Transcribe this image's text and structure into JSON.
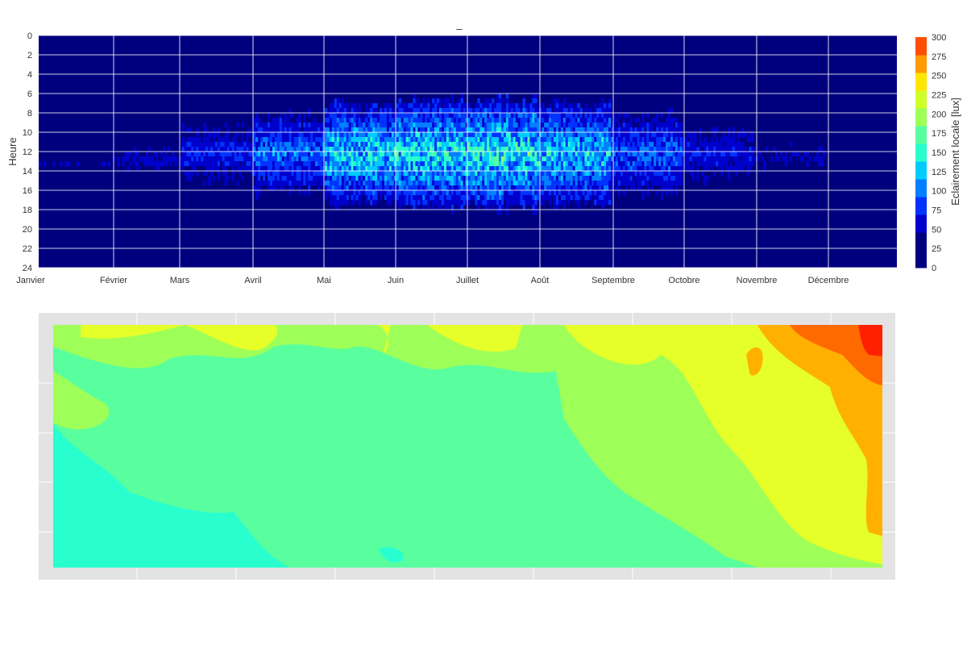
{
  "chart_data": [
    {
      "type": "heatmap",
      "title": "–",
      "xlabel": "",
      "ylabel": "Heure",
      "x_tick_labels": [
        "Janvier",
        "Février",
        "Mars",
        "Avril",
        "Mai",
        "Juin",
        "Juillet",
        "Août",
        "Septembre",
        "Octobre",
        "Novembre",
        "Décembre"
      ],
      "y_ticks": [
        0,
        2,
        4,
        6,
        8,
        10,
        12,
        14,
        16,
        18,
        20,
        22,
        24
      ],
      "ylim": [
        24,
        0
      ],
      "grid": true,
      "colorbar": {
        "label": "Eclairement locale [lux]",
        "ticks": [
          0,
          25,
          50,
          75,
          100,
          125,
          150,
          175,
          200,
          225,
          250,
          275,
          300
        ],
        "range": [
          0,
          300
        ],
        "colors": [
          "#00007f",
          "#0000cc",
          "#0033ff",
          "#0080ff",
          "#00ccff",
          "#29ffce",
          "#59ff9e",
          "#9eff59",
          "#ceff29",
          "#ffe600",
          "#ff9a00",
          "#ff4e00",
          "#c60000",
          "#7f0000"
        ]
      },
      "daylight_envelope_by_month": [
        {
          "month": "Janvier",
          "start_hour": 12.5,
          "end_hour": 13.5,
          "peak_lux": 30
        },
        {
          "month": "Février",
          "start_hour": 11,
          "end_hour": 14,
          "peak_lux": 40
        },
        {
          "month": "Mars",
          "start_hour": 9,
          "end_hour": 15,
          "peak_lux": 60
        },
        {
          "month": "Avril",
          "start_hour": 8,
          "end_hour": 16,
          "peak_lux": 95
        },
        {
          "month": "Mai",
          "start_hour": 7,
          "end_hour": 17,
          "peak_lux": 140
        },
        {
          "month": "Juin",
          "start_hour": 6.5,
          "end_hour": 17.5,
          "peak_lux": 145
        },
        {
          "month": "Juillet",
          "start_hour": 6.5,
          "end_hour": 17.5,
          "peak_lux": 160
        },
        {
          "month": "Août",
          "start_hour": 7,
          "end_hour": 17,
          "peak_lux": 130
        },
        {
          "month": "Septembre",
          "start_hour": 8,
          "end_hour": 16,
          "peak_lux": 90
        },
        {
          "month": "Octobre",
          "start_hour": 9,
          "end_hour": 15,
          "peak_lux": 55
        },
        {
          "month": "Novembre",
          "start_hour": 10.5,
          "end_hour": 14,
          "peak_lux": 35
        },
        {
          "month": "Décembre",
          "start_hour": 0,
          "end_hour": 0,
          "peak_lux": 0
        }
      ]
    },
    {
      "type": "heatmap",
      "title": "",
      "xlabel": "",
      "ylabel": "",
      "grid": true,
      "description_levels": [
        "cyan",
        "light-green",
        "green",
        "yellow-green",
        "yellow",
        "orange",
        "red"
      ],
      "value_range": [
        100,
        275
      ],
      "colors": {
        "c100": "#29ffce",
        "c125": "#59ff9e",
        "c150": "#9eff59",
        "c175": "#e6ff29",
        "c200": "#ffe600",
        "c225": "#ffb000",
        "c250": "#ff6a00",
        "c275": "#ff2000",
        "frame": "#e3e3e3"
      }
    }
  ]
}
